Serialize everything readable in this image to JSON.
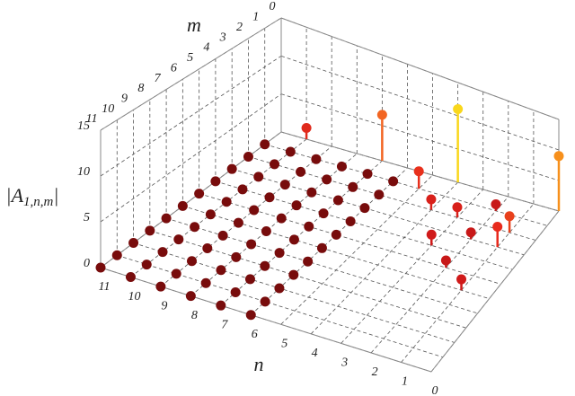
{
  "chart_data": {
    "type": "stem3d",
    "n_label": "n",
    "m_label": "m",
    "z_label": [
      "|A",
      "1,n,m",
      "|"
    ],
    "nlim": [
      0,
      11
    ],
    "mlim": [
      0,
      11
    ],
    "zlim": [
      0,
      15
    ],
    "nticks": [
      0,
      1,
      2,
      3,
      4,
      5,
      6,
      7,
      8,
      9,
      10,
      11
    ],
    "mticks": [
      0,
      1,
      2,
      3,
      4,
      5,
      6,
      7,
      8,
      9,
      10,
      11
    ],
    "zticks": [
      0,
      5,
      10,
      15
    ],
    "grid": true,
    "base": {
      "n": [
        6,
        7,
        8,
        9,
        10,
        11
      ],
      "m": [
        1,
        2,
        3,
        4,
        5,
        6,
        7,
        8,
        9,
        10,
        11
      ],
      "color": "#780c0c",
      "values": [
        [
          0,
          0,
          0,
          0,
          0,
          0,
          0,
          0,
          0,
          0,
          0
        ],
        [
          0,
          0,
          0,
          0,
          0,
          0,
          0,
          0,
          0,
          0,
          0
        ],
        [
          0,
          0,
          0,
          0,
          0,
          0,
          0,
          0,
          0,
          0,
          0
        ],
        [
          0,
          0,
          0,
          0,
          0,
          0,
          0,
          0,
          0,
          0,
          0
        ],
        [
          0,
          0,
          0,
          0,
          0,
          0,
          0,
          0,
          0,
          0,
          0
        ],
        [
          0,
          0,
          0,
          0,
          0,
          0,
          0,
          0,
          0,
          0,
          0
        ]
      ]
    },
    "stems": {
      "n": [
        10,
        7,
        5,
        4,
        4,
        3,
        2,
        3,
        2,
        1,
        1,
        0,
        1,
        2
      ],
      "m": [
        0,
        0,
        1,
        0,
        2,
        2,
        3,
        4,
        5,
        2,
        3,
        0,
        6,
        1
      ],
      "values": [
        1.5,
        6.5,
        2.5,
        11,
        1.5,
        1.5,
        1,
        1.5,
        1,
        2.5,
        3,
        9,
        1.5,
        1
      ],
      "colors": [
        "#e02a1c",
        "#f26522",
        "#e8301c",
        "#f9d71c",
        "#d8201a",
        "#d8201a",
        "#c81818",
        "#d01a1a",
        "#c81818",
        "#e8401c",
        "#e82a1c",
        "#f7901c",
        "#d01a1a",
        "#c81818"
      ]
    }
  }
}
